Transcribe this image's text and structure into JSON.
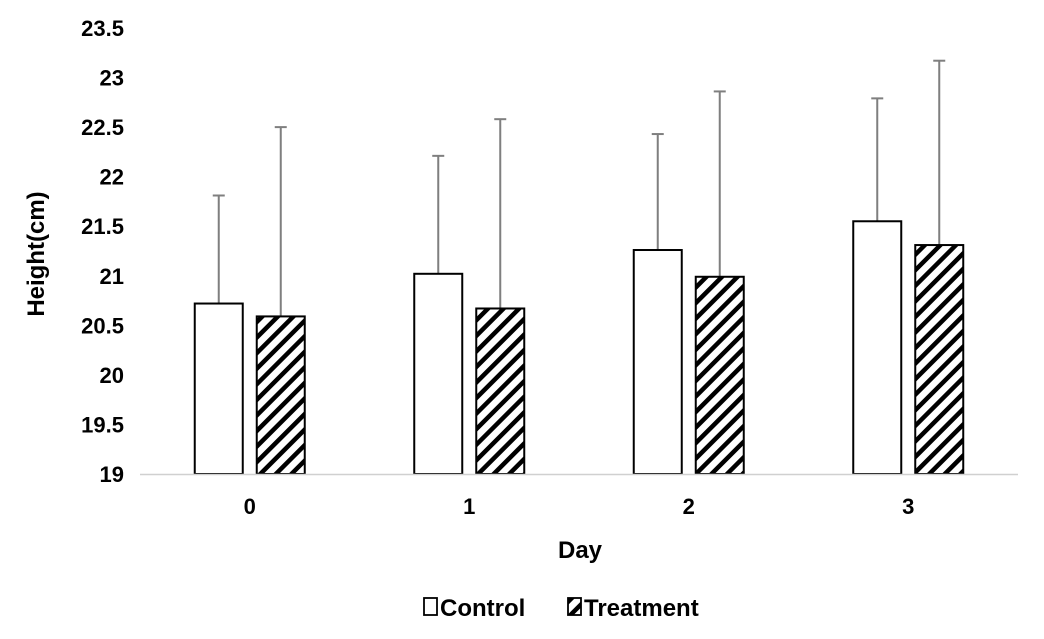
{
  "chart_data": {
    "type": "bar",
    "xlabel": "Day",
    "ylabel": "Height(cm)",
    "ylim": [
      19,
      23.5
    ],
    "yticks": [
      "19",
      "19.5",
      "20",
      "20.5",
      "21",
      "21.5",
      "22",
      "22.5",
      "23",
      "23.5"
    ],
    "categories": [
      "0",
      "1",
      "2",
      "3"
    ],
    "grid": false,
    "legend_position": "bottom",
    "series": [
      {
        "name": "Control",
        "pattern": "solid-white",
        "values": [
          20.72,
          21.02,
          21.26,
          21.55
        ],
        "error_upper": [
          1.09,
          1.19,
          1.17,
          1.24
        ]
      },
      {
        "name": "Treatment",
        "pattern": "diagonal-hatch",
        "values": [
          20.59,
          20.67,
          20.99,
          21.31
        ],
        "error_upper": [
          1.91,
          1.91,
          1.87,
          1.86
        ]
      }
    ],
    "colors": {
      "bar_stroke": "#000000",
      "bar_fill": "#ffffff",
      "hatch": "#000000",
      "error_bar": "#7f7f7f",
      "baseline": "#d0d0d0"
    }
  }
}
